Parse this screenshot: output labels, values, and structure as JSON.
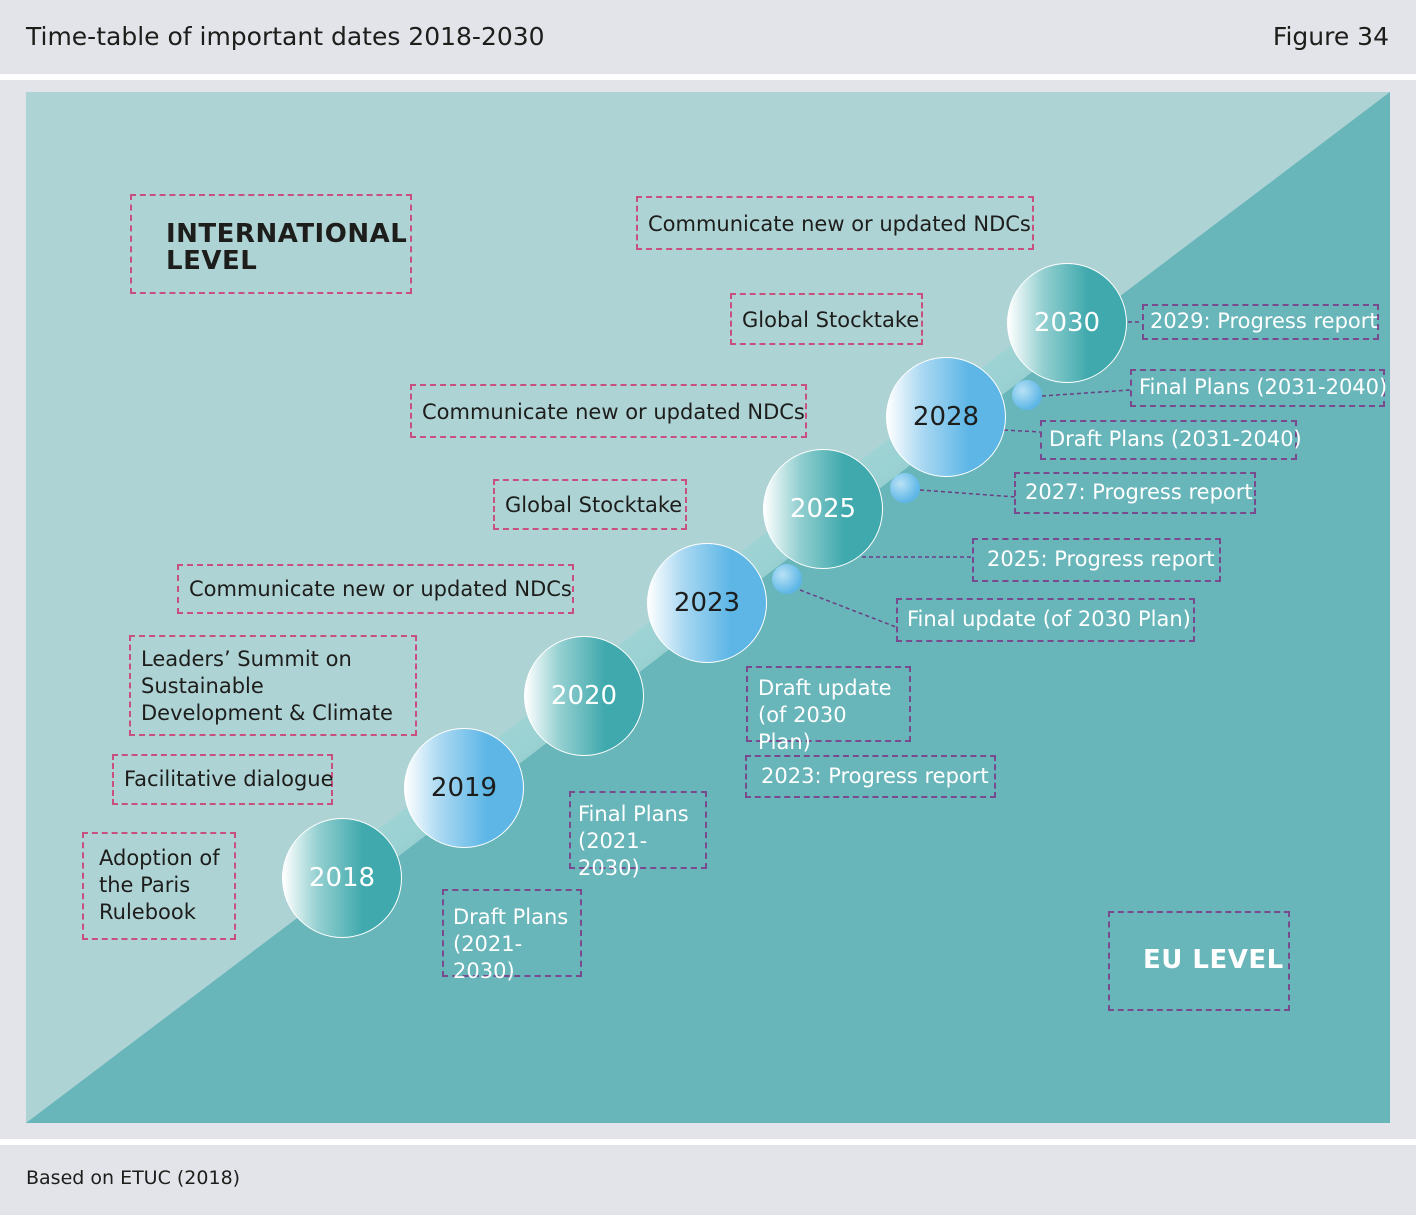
{
  "header": {
    "title": "Time-table of important dates 2018-2030",
    "figure": "Figure 34"
  },
  "footer": {
    "source": "Based on ETUC (2018)"
  },
  "colors": {
    "upper_panel": "#aed3d5",
    "lower_panel": "#68b5ba",
    "intl_border": "#c94f7e",
    "eu_border": "#7a4a8e",
    "teal_circle": "#3fa9ad",
    "blue_circle": "#5db6e6"
  },
  "labels": {
    "international": "INTERNATIONAL LEVEL",
    "eu": "EU LEVEL"
  },
  "years": [
    "2018",
    "2019",
    "2020",
    "2023",
    "2025",
    "2028",
    "2030"
  ],
  "international_events": [
    "Communicate new or updated NDCs",
    "Global Stocktake",
    "Communicate new or updated NDCs",
    "Global Stocktake",
    "Communicate new or updated NDCs",
    "Leaders’ Summit on Sustainable Development & Climate",
    "Facilitative dialogue",
    "Adoption of the Paris Rulebook"
  ],
  "eu_events": [
    "2029: Progress report",
    "Final Plans (2031-2040)",
    "Draft Plans (2031-2040)",
    "2027: Progress report",
    "2025: Progress report",
    "Final update (of 2030 Plan)",
    "Draft update (of 2030 Plan)",
    "2023: Progress report",
    "Final Plans (2021-2030)",
    "Draft Plans (2021-2030)"
  ]
}
